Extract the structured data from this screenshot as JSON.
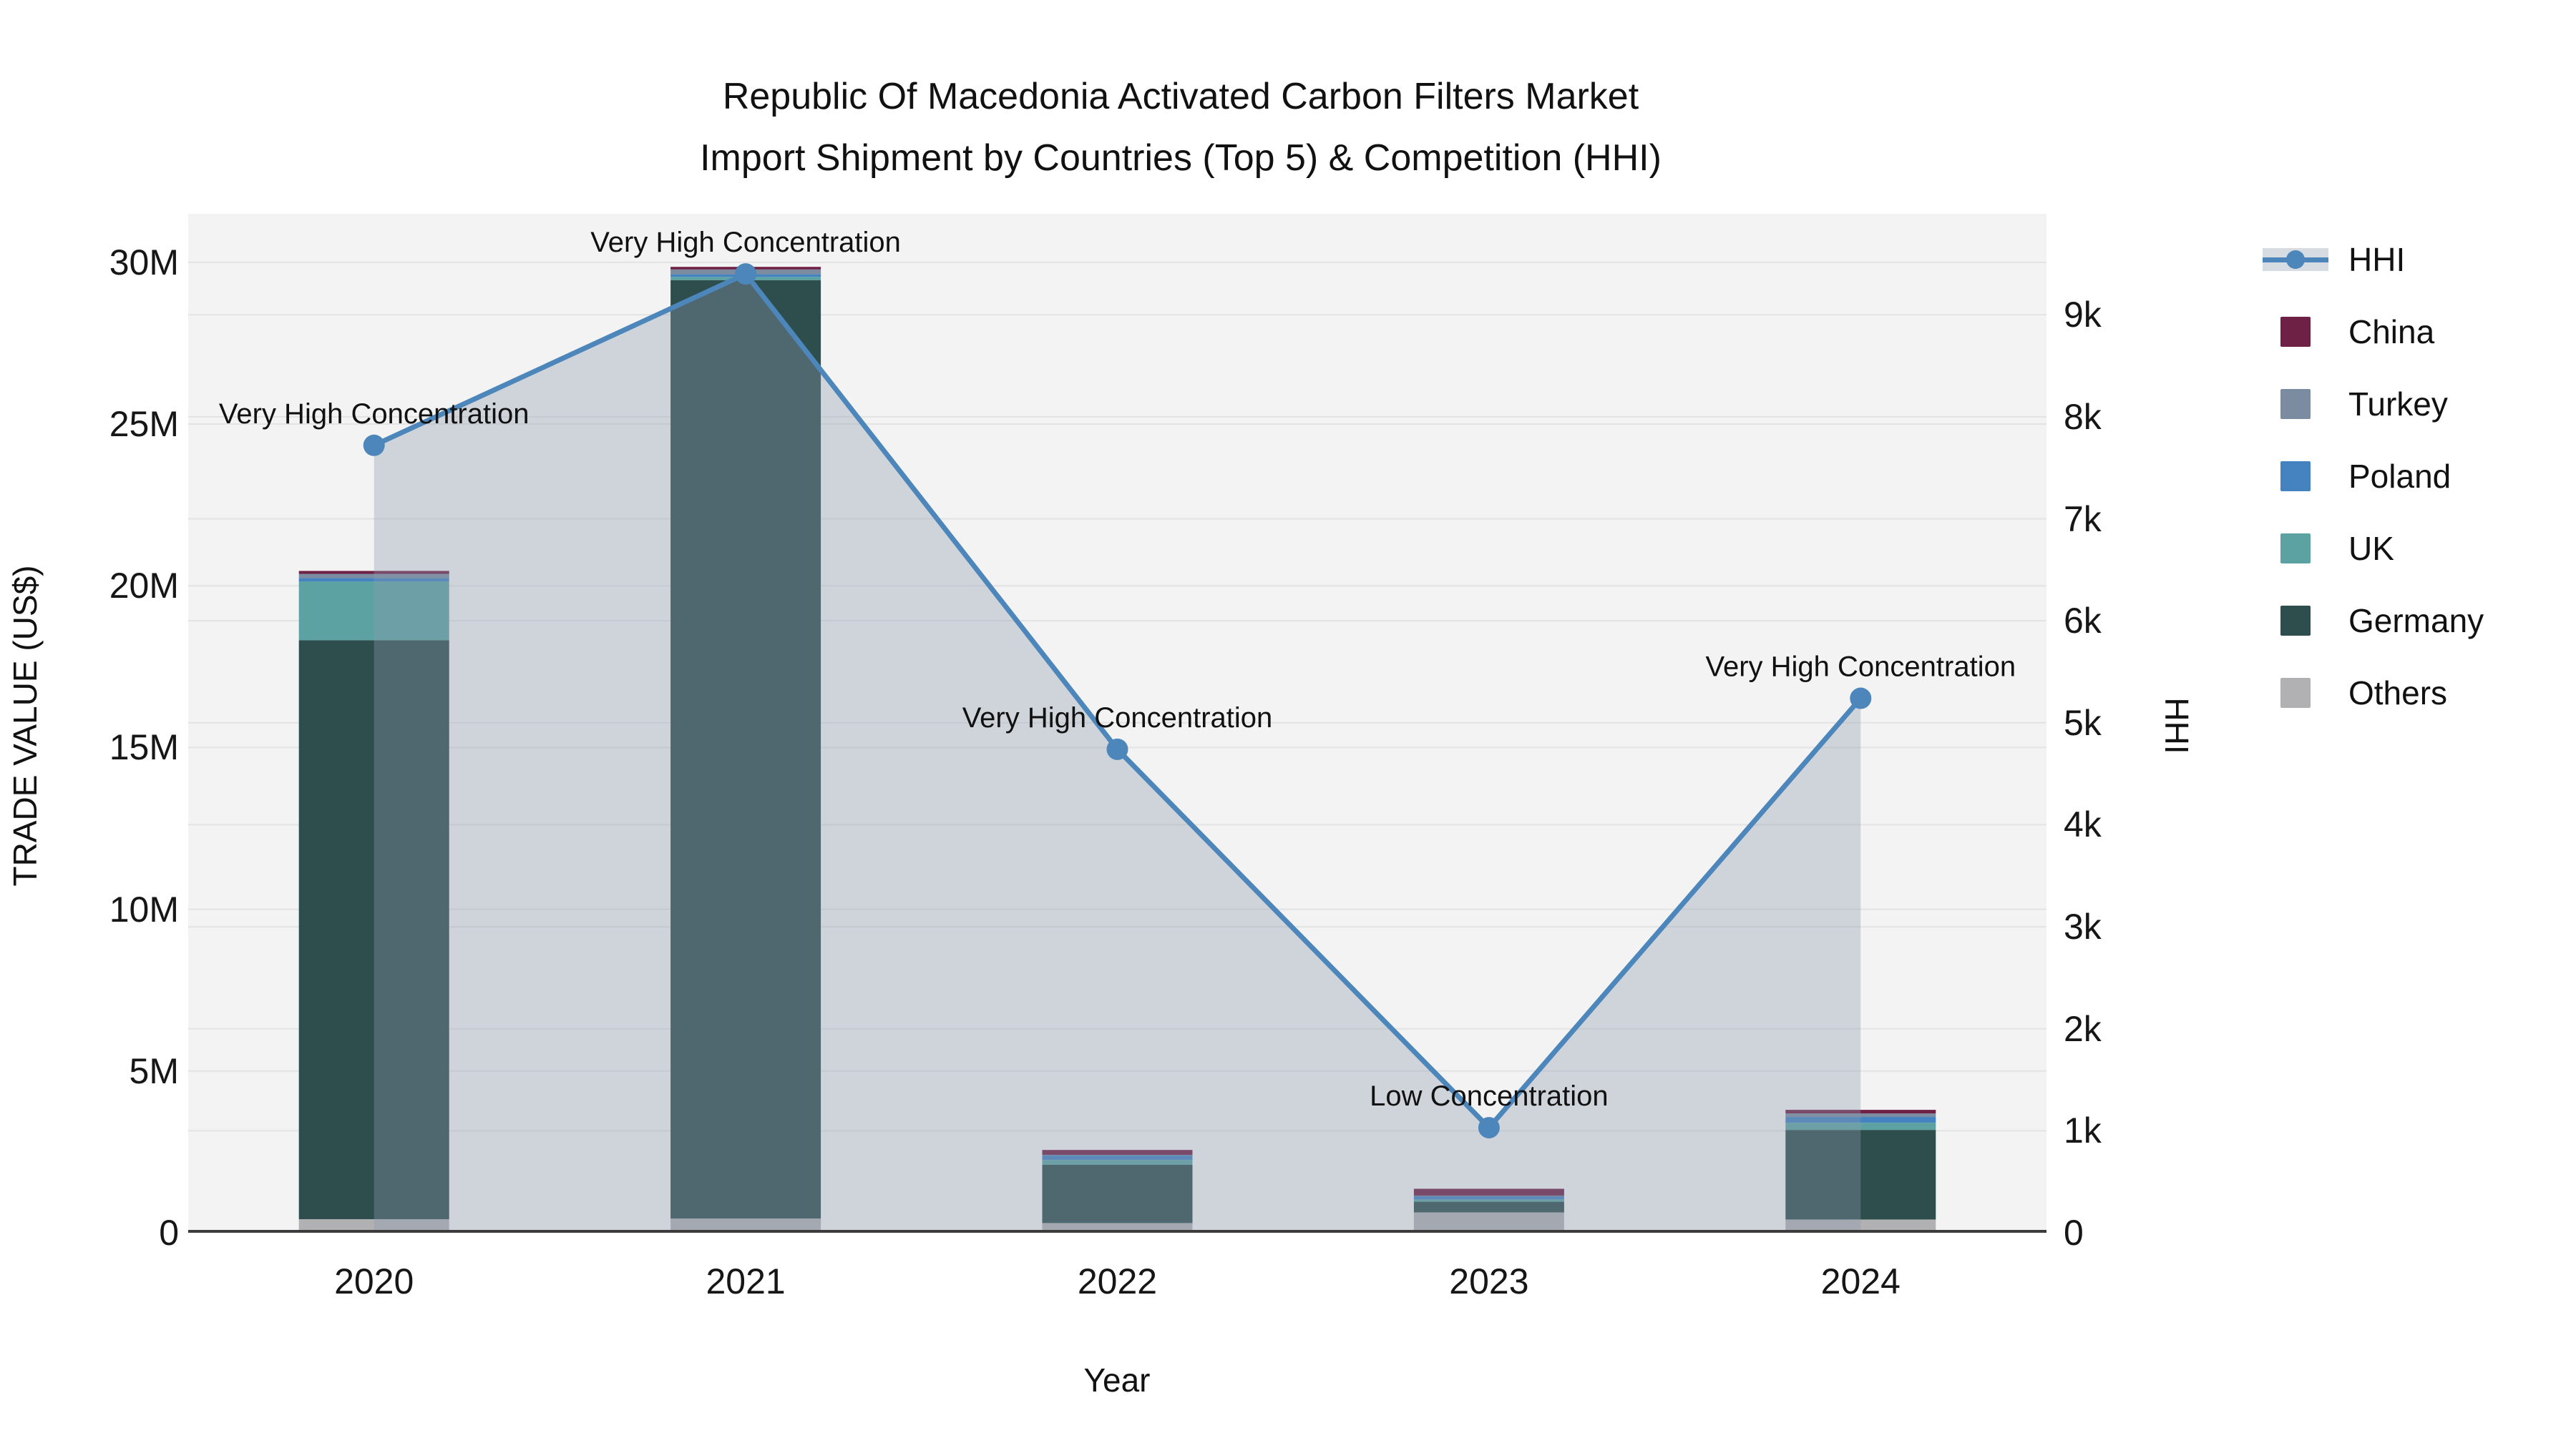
{
  "title": {
    "line1": "Republic Of Macedonia Activated Carbon Filters Market",
    "line2": "Import Shipment by Countries (Top 5) & Competition (HHI)"
  },
  "colors": {
    "grid": "#e3e3e3",
    "plot_bg": "#f3f3f3",
    "axis_line": "#3c3c3c",
    "text": "#111111"
  },
  "chart_data": {
    "type": "bar+line",
    "title": "Republic Of Macedonia Activated Carbon Filters Market Import Shipment by Countries (Top 5) & Competition (HHI)",
    "categories": [
      "2020",
      "2021",
      "2022",
      "2023",
      "2024"
    ],
    "values_unit": "million US$",
    "series": [
      {
        "name": "China",
        "color": "#6F2045",
        "values": [
          0.09,
          0.08,
          0.15,
          0.21,
          0.11
        ]
      },
      {
        "name": "Turkey",
        "color": "#7B8BA0",
        "values": [
          0.13,
          0.15,
          0.01,
          0.01,
          0.11
        ]
      },
      {
        "name": "Poland",
        "color": "#4483BF",
        "values": [
          0.11,
          0.08,
          0.15,
          0.11,
          0.18
        ]
      },
      {
        "name": "UK",
        "color": "#5CA2A2",
        "values": [
          1.81,
          0.1,
          0.15,
          0.07,
          0.22
        ]
      },
      {
        "name": "Germany",
        "color": "#2E4E4E",
        "values": [
          17.9,
          29.01,
          1.8,
          0.33,
          2.77
        ]
      },
      {
        "name": "Others",
        "color": "#B1B1B3",
        "values": [
          0.42,
          0.44,
          0.3,
          0.63,
          0.41
        ]
      }
    ],
    "line": {
      "name": "HHI",
      "color": "#4C86BA",
      "fill": "rgba(140,155,175,0.35)",
      "values": [
        7720,
        9400,
        4740,
        1030,
        5240
      ]
    },
    "annotations": [
      "Very High Concentration",
      "Very High Concentration",
      "Very High Concentration",
      "Low Concentration",
      "Very High Concentration"
    ],
    "left_axis": {
      "label": "TRADE VALUE (US$)",
      "ticks": [
        0,
        5,
        10,
        15,
        20,
        25,
        30
      ],
      "tick_labels": [
        "0",
        "5M",
        "10M",
        "15M",
        "20M",
        "25M",
        "30M"
      ],
      "max": 31.5
    },
    "right_axis": {
      "label": "HHI",
      "ticks": [
        0,
        1000,
        2000,
        3000,
        4000,
        5000,
        6000,
        7000,
        8000,
        9000
      ],
      "tick_labels": [
        "0",
        "1k",
        "2k",
        "3k",
        "4k",
        "5k",
        "6k",
        "7k",
        "8k",
        "9k"
      ],
      "max": 9990
    },
    "x_axis": {
      "label": "Year"
    },
    "legend_position": "right",
    "grid": true,
    "plot_bg": "#f3f3f3"
  }
}
